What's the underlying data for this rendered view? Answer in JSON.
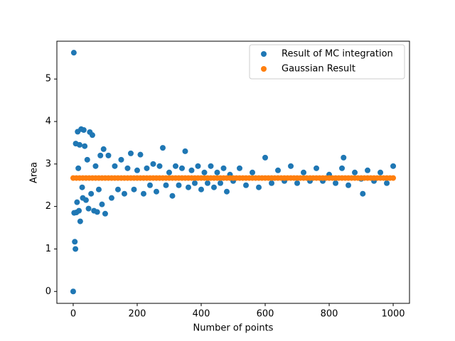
{
  "chart_data": {
    "type": "scatter",
    "xlabel": "Number of points",
    "ylabel": "Area",
    "xlim": [
      -51,
      1051
    ],
    "ylim": [
      -0.28,
      5.89
    ],
    "xticks": [
      0,
      200,
      400,
      600,
      800,
      1000
    ],
    "yticks": [
      0,
      1,
      2,
      3,
      4,
      5
    ],
    "legend": "upper right",
    "series": [
      {
        "name": "Result of MC integration",
        "color": "#1f77b4",
        "x": [
          0,
          2,
          3,
          5,
          7,
          8,
          10,
          12,
          14,
          16,
          18,
          20,
          22,
          25,
          28,
          30,
          33,
          36,
          40,
          44,
          48,
          52,
          56,
          60,
          65,
          70,
          75,
          80,
          85,
          90,
          95,
          100,
          110,
          120,
          130,
          140,
          150,
          160,
          170,
          180,
          190,
          200,
          210,
          220,
          230,
          240,
          250,
          260,
          270,
          280,
          290,
          300,
          310,
          320,
          330,
          340,
          350,
          360,
          370,
          380,
          390,
          400,
          410,
          420,
          430,
          440,
          450,
          460,
          470,
          480,
          490,
          500,
          520,
          540,
          560,
          580,
          600,
          620,
          640,
          660,
          680,
          700,
          720,
          740,
          760,
          780,
          800,
          820,
          840,
          845,
          860,
          880,
          900,
          905,
          920,
          940,
          960,
          980,
          1000
        ],
        "values": [
          0.0,
          5.62,
          1.85,
          1.17,
          1.0,
          3.48,
          1.86,
          2.1,
          3.76,
          2.9,
          1.9,
          3.45,
          1.65,
          3.82,
          2.45,
          2.2,
          3.8,
          3.42,
          2.15,
          3.1,
          1.95,
          3.75,
          2.3,
          3.68,
          1.9,
          2.95,
          1.87,
          2.4,
          3.2,
          2.05,
          3.35,
          1.83,
          3.2,
          2.2,
          2.95,
          2.4,
          3.1,
          2.3,
          2.9,
          3.25,
          2.4,
          2.85,
          3.22,
          2.3,
          2.9,
          2.5,
          3.0,
          2.35,
          2.95,
          3.38,
          2.5,
          2.8,
          2.25,
          2.95,
          2.5,
          2.9,
          3.3,
          2.45,
          2.85,
          2.55,
          2.95,
          2.4,
          2.8,
          2.55,
          2.95,
          2.45,
          2.8,
          2.55,
          2.9,
          2.35,
          2.75,
          2.6,
          2.9,
          2.5,
          2.8,
          2.45,
          3.15,
          2.55,
          2.85,
          2.6,
          2.95,
          2.55,
          2.8,
          2.6,
          2.9,
          2.6,
          2.75,
          2.55,
          2.9,
          3.15,
          2.5,
          2.8,
          2.65,
          2.3,
          2.85,
          2.6,
          2.8,
          2.55,
          2.95
        ]
      },
      {
        "name": "Gaussian Result",
        "color": "#ff7f0e",
        "x": [
          0,
          10,
          20,
          30,
          40,
          50,
          60,
          70,
          80,
          90,
          100,
          110,
          120,
          130,
          140,
          150,
          160,
          170,
          180,
          190,
          200,
          210,
          220,
          230,
          240,
          250,
          260,
          270,
          280,
          290,
          300,
          310,
          320,
          330,
          340,
          350,
          360,
          370,
          380,
          390,
          400,
          410,
          420,
          430,
          440,
          450,
          460,
          470,
          480,
          490,
          500,
          510,
          520,
          530,
          540,
          550,
          560,
          570,
          580,
          590,
          600,
          610,
          620,
          630,
          640,
          650,
          660,
          670,
          680,
          690,
          700,
          710,
          720,
          730,
          740,
          750,
          760,
          770,
          780,
          790,
          800,
          810,
          820,
          830,
          840,
          850,
          860,
          870,
          880,
          890,
          900,
          910,
          920,
          930,
          940,
          950,
          960,
          970,
          980,
          990,
          1000
        ],
        "values": [
          2.67,
          2.67,
          2.67,
          2.67,
          2.67,
          2.67,
          2.67,
          2.67,
          2.67,
          2.67,
          2.67,
          2.67,
          2.67,
          2.67,
          2.67,
          2.67,
          2.67,
          2.67,
          2.67,
          2.67,
          2.67,
          2.67,
          2.67,
          2.67,
          2.67,
          2.67,
          2.67,
          2.67,
          2.67,
          2.67,
          2.67,
          2.67,
          2.67,
          2.67,
          2.67,
          2.67,
          2.67,
          2.67,
          2.67,
          2.67,
          2.67,
          2.67,
          2.67,
          2.67,
          2.67,
          2.67,
          2.67,
          2.67,
          2.67,
          2.67,
          2.67,
          2.67,
          2.67,
          2.67,
          2.67,
          2.67,
          2.67,
          2.67,
          2.67,
          2.67,
          2.67,
          2.67,
          2.67,
          2.67,
          2.67,
          2.67,
          2.67,
          2.67,
          2.67,
          2.67,
          2.67,
          2.67,
          2.67,
          2.67,
          2.67,
          2.67,
          2.67,
          2.67,
          2.67,
          2.67,
          2.67,
          2.67,
          2.67,
          2.67,
          2.67,
          2.67,
          2.67,
          2.67,
          2.67,
          2.67,
          2.67,
          2.67,
          2.67,
          2.67,
          2.67,
          2.67,
          2.67,
          2.67,
          2.67,
          2.67,
          2.67
        ]
      }
    ]
  }
}
